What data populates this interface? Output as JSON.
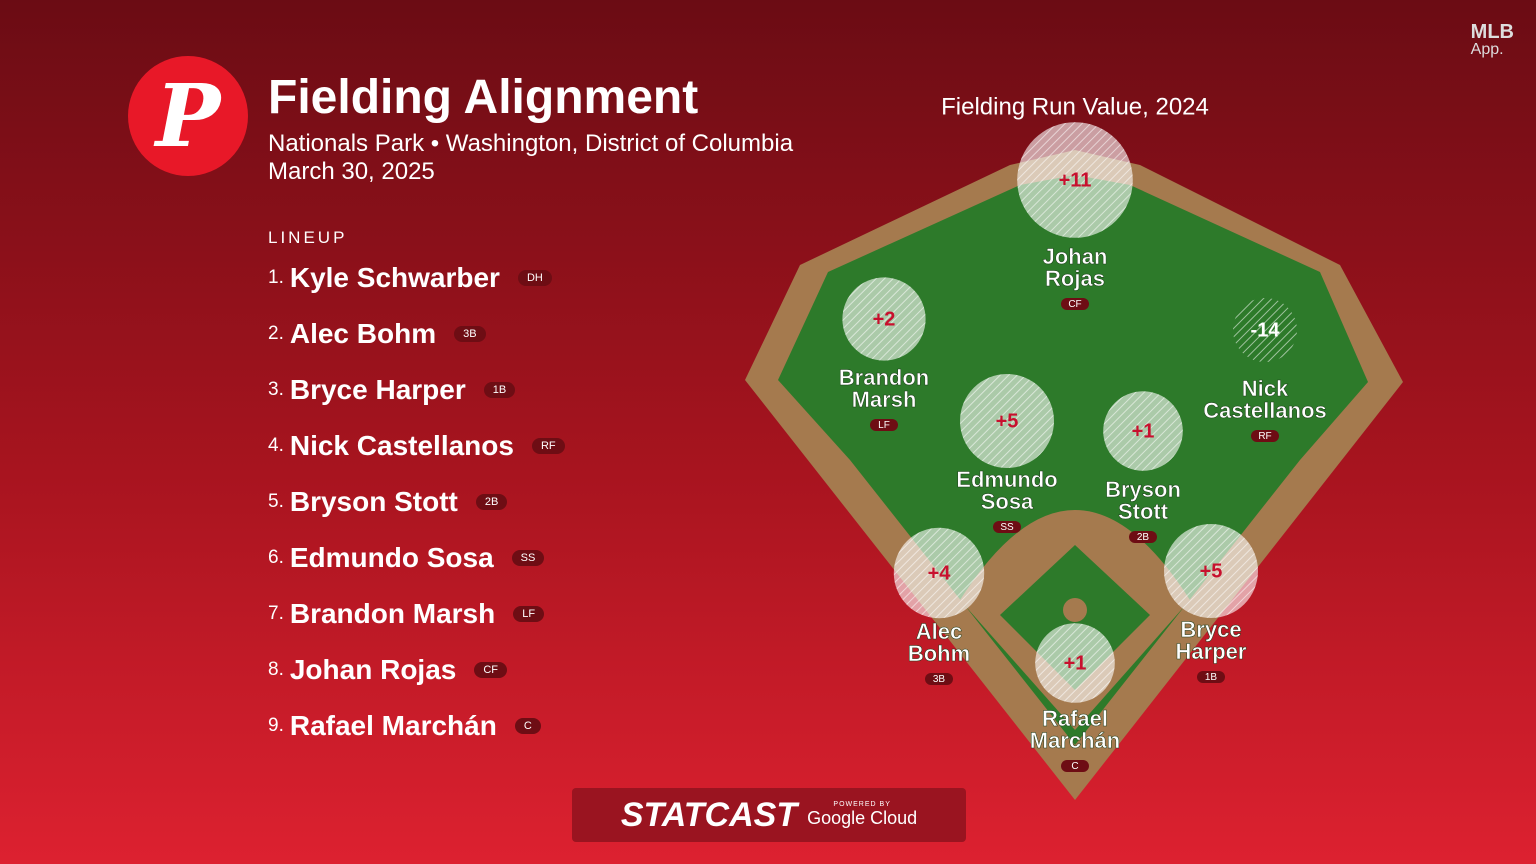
{
  "header": {
    "title": "Fielding Alignment",
    "venue": "Nationals Park • Washington, District of Columbia",
    "date": "March 30, 2025"
  },
  "app_badge": {
    "line1": "MLB",
    "line2": "App."
  },
  "lineup": {
    "heading": "LINEUP",
    "items": [
      {
        "number": "1.",
        "name": "Kyle Schwarber",
        "position": "DH"
      },
      {
        "number": "2.",
        "name": "Alec Bohm",
        "position": "3B"
      },
      {
        "number": "3.",
        "name": "Bryce Harper",
        "position": "1B"
      },
      {
        "number": "4.",
        "name": "Nick Castellanos",
        "position": "RF"
      },
      {
        "number": "5.",
        "name": "Bryson Stott",
        "position": "2B"
      },
      {
        "number": "6.",
        "name": "Edmundo Sosa",
        "position": "SS"
      },
      {
        "number": "7.",
        "name": "Brandon Marsh",
        "position": "LF"
      },
      {
        "number": "8.",
        "name": "Johan Rojas",
        "position": "CF"
      },
      {
        "number": "9.",
        "name": "Rafael Marchán",
        "position": "C"
      }
    ]
  },
  "field": {
    "title": "Fielding Run Value, 2024",
    "players": [
      {
        "name_lines": [
          "Johan",
          "Rojas"
        ],
        "position": "CF",
        "run_value": 11,
        "run_value_label": "+11"
      },
      {
        "name_lines": [
          "Brandon",
          "Marsh"
        ],
        "position": "LF",
        "run_value": 2,
        "run_value_label": "+2"
      },
      {
        "name_lines": [
          "Nick",
          "Castellanos"
        ],
        "position": "RF",
        "run_value": -14,
        "run_value_label": "-14"
      },
      {
        "name_lines": [
          "Edmundo",
          "Sosa"
        ],
        "position": "SS",
        "run_value": 5,
        "run_value_label": "+5"
      },
      {
        "name_lines": [
          "Bryson",
          "Stott"
        ],
        "position": "2B",
        "run_value": 1,
        "run_value_label": "+1"
      },
      {
        "name_lines": [
          "Alec",
          "Bohm"
        ],
        "position": "3B",
        "run_value": 4,
        "run_value_label": "+4"
      },
      {
        "name_lines": [
          "Bryce",
          "Harper"
        ],
        "position": "1B",
        "run_value": 5,
        "run_value_label": "+5"
      },
      {
        "name_lines": [
          "Rafael",
          "Marchán"
        ],
        "position": "C",
        "run_value": 1,
        "run_value_label": "+1"
      }
    ]
  },
  "footer": {
    "brand": "STATCAST",
    "powered": "POWERED BY",
    "partner": "Google Cloud"
  }
}
